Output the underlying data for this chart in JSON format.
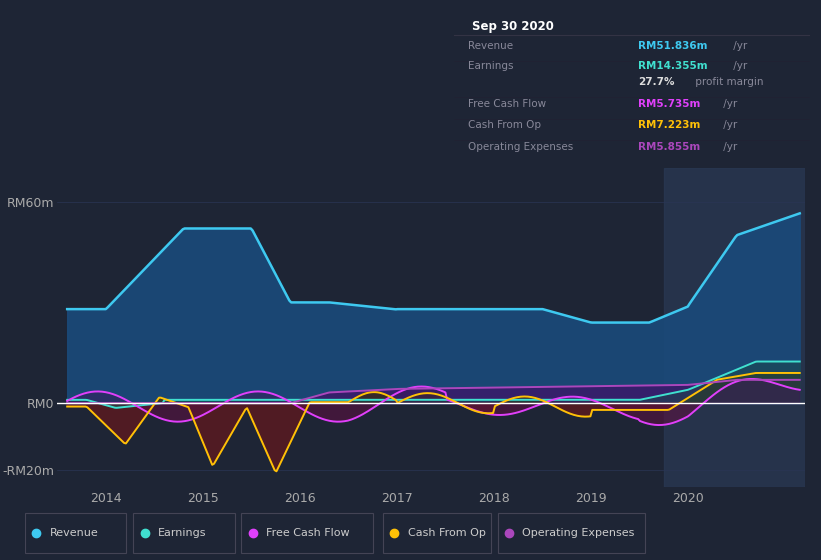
{
  "bg_color": "#1e2535",
  "plot_bg_color": "#1e2535",
  "ylim": [
    -25,
    70
  ],
  "xlim": [
    2013.5,
    2021.2
  ],
  "yticks": [
    -20,
    0,
    60
  ],
  "ytick_labels": [
    "-RM20m",
    "RM0",
    "RM60m"
  ],
  "xticks": [
    2014,
    2015,
    2016,
    2017,
    2018,
    2019,
    2020
  ],
  "grid_color": "#2a3555",
  "zero_line_color": "#ffffff",
  "highlight_x_start": 2019.75,
  "highlight_x_end": 2021.2,
  "highlight_color": "#2a3a55",
  "revenue_color": "#3ec9f0",
  "revenue_fill": "#1a4a7a",
  "earnings_color": "#40e0d0",
  "fcf_color": "#e040fb",
  "cashfromop_color": "#ffc107",
  "opex_color": "#ab47bc",
  "legend_items": [
    {
      "label": "Revenue",
      "color": "#3ec9f0"
    },
    {
      "label": "Earnings",
      "color": "#40e0d0"
    },
    {
      "label": "Free Cash Flow",
      "color": "#e040fb"
    },
    {
      "label": "Cash From Op",
      "color": "#ffc107"
    },
    {
      "label": "Operating Expenses",
      "color": "#ab47bc"
    }
  ]
}
